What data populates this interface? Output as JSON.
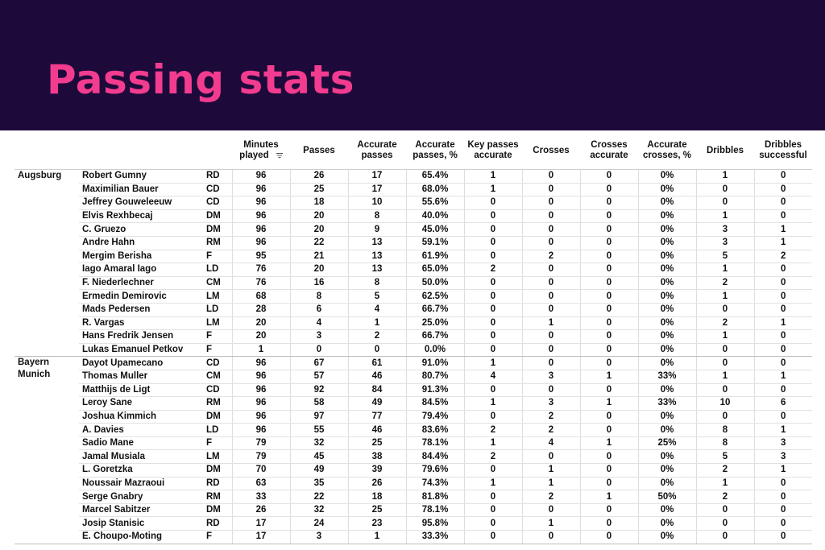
{
  "title": "Passing stats",
  "columns": [
    "Minutes played",
    "Passes",
    "Accurate passes",
    "Accurate passes, %",
    "Key passes accurate",
    "Crosses",
    "Crosses accurate",
    "Accurate crosses, %",
    "Dribbles",
    "Dribbles successful"
  ],
  "teams": [
    {
      "name": "Augsburg",
      "players": [
        {
          "name": "Robert Gumny",
          "pos": "RD",
          "stats": [
            "96",
            "26",
            "17",
            "65.4%",
            "1",
            "0",
            "0",
            "0%",
            "1",
            "0"
          ]
        },
        {
          "name": "Maximilian Bauer",
          "pos": "CD",
          "stats": [
            "96",
            "25",
            "17",
            "68.0%",
            "1",
            "0",
            "0",
            "0%",
            "0",
            "0"
          ]
        },
        {
          "name": "Jeffrey Gouweleeuw",
          "pos": "CD",
          "stats": [
            "96",
            "18",
            "10",
            "55.6%",
            "0",
            "0",
            "0",
            "0%",
            "0",
            "0"
          ]
        },
        {
          "name": "Elvis Rexhbecaj",
          "pos": "DM",
          "stats": [
            "96",
            "20",
            "8",
            "40.0%",
            "0",
            "0",
            "0",
            "0%",
            "1",
            "0"
          ]
        },
        {
          "name": "C. Gruezo",
          "pos": "DM",
          "stats": [
            "96",
            "20",
            "9",
            "45.0%",
            "0",
            "0",
            "0",
            "0%",
            "3",
            "1"
          ]
        },
        {
          "name": "Andre Hahn",
          "pos": "RM",
          "stats": [
            "96",
            "22",
            "13",
            "59.1%",
            "0",
            "0",
            "0",
            "0%",
            "3",
            "1"
          ]
        },
        {
          "name": "Mergim Berisha",
          "pos": "F",
          "stats": [
            "95",
            "21",
            "13",
            "61.9%",
            "0",
            "2",
            "0",
            "0%",
            "5",
            "2"
          ]
        },
        {
          "name": "Iago Amaral Iago",
          "pos": "LD",
          "stats": [
            "76",
            "20",
            "13",
            "65.0%",
            "2",
            "0",
            "0",
            "0%",
            "1",
            "0"
          ]
        },
        {
          "name": "F. Niederlechner",
          "pos": "CM",
          "stats": [
            "76",
            "16",
            "8",
            "50.0%",
            "0",
            "0",
            "0",
            "0%",
            "2",
            "0"
          ]
        },
        {
          "name": "Ermedin Demirovic",
          "pos": "LM",
          "stats": [
            "68",
            "8",
            "5",
            "62.5%",
            "0",
            "0",
            "0",
            "0%",
            "1",
            "0"
          ]
        },
        {
          "name": "Mads Pedersen",
          "pos": "LD",
          "stats": [
            "28",
            "6",
            "4",
            "66.7%",
            "0",
            "0",
            "0",
            "0%",
            "0",
            "0"
          ]
        },
        {
          "name": "R. Vargas",
          "pos": "LM",
          "stats": [
            "20",
            "4",
            "1",
            "25.0%",
            "0",
            "1",
            "0",
            "0%",
            "2",
            "1"
          ]
        },
        {
          "name": "Hans Fredrik Jensen",
          "pos": "F",
          "stats": [
            "20",
            "3",
            "2",
            "66.7%",
            "0",
            "0",
            "0",
            "0%",
            "1",
            "0"
          ]
        },
        {
          "name": "Lukas Emanuel Petkov",
          "pos": "F",
          "stats": [
            "1",
            "0",
            "0",
            "0.0%",
            "0",
            "0",
            "0",
            "0%",
            "0",
            "0"
          ]
        }
      ]
    },
    {
      "name": "Bayern Munich",
      "players": [
        {
          "name": "Dayot Upamecano",
          "pos": "CD",
          "stats": [
            "96",
            "67",
            "61",
            "91.0%",
            "1",
            "0",
            "0",
            "0%",
            "0",
            "0"
          ]
        },
        {
          "name": "Thomas Muller",
          "pos": "CM",
          "stats": [
            "96",
            "57",
            "46",
            "80.7%",
            "4",
            "3",
            "1",
            "33%",
            "1",
            "1"
          ]
        },
        {
          "name": "Matthijs de Ligt",
          "pos": "CD",
          "stats": [
            "96",
            "92",
            "84",
            "91.3%",
            "0",
            "0",
            "0",
            "0%",
            "0",
            "0"
          ]
        },
        {
          "name": "Leroy Sane",
          "pos": "RM",
          "stats": [
            "96",
            "58",
            "49",
            "84.5%",
            "1",
            "3",
            "1",
            "33%",
            "10",
            "6"
          ]
        },
        {
          "name": "Joshua Kimmich",
          "pos": "DM",
          "stats": [
            "96",
            "97",
            "77",
            "79.4%",
            "0",
            "2",
            "0",
            "0%",
            "0",
            "0"
          ]
        },
        {
          "name": "A. Davies",
          "pos": "LD",
          "stats": [
            "96",
            "55",
            "46",
            "83.6%",
            "2",
            "2",
            "0",
            "0%",
            "8",
            "1"
          ]
        },
        {
          "name": "Sadio Mane",
          "pos": "F",
          "stats": [
            "79",
            "32",
            "25",
            "78.1%",
            "1",
            "4",
            "1",
            "25%",
            "8",
            "3"
          ]
        },
        {
          "name": "Jamal Musiala",
          "pos": "LM",
          "stats": [
            "79",
            "45",
            "38",
            "84.4%",
            "2",
            "0",
            "0",
            "0%",
            "5",
            "3"
          ]
        },
        {
          "name": "L. Goretzka",
          "pos": "DM",
          "stats": [
            "70",
            "49",
            "39",
            "79.6%",
            "0",
            "1",
            "0",
            "0%",
            "2",
            "1"
          ]
        },
        {
          "name": "Noussair Mazraoui",
          "pos": "RD",
          "stats": [
            "63",
            "35",
            "26",
            "74.3%",
            "1",
            "1",
            "0",
            "0%",
            "1",
            "0"
          ]
        },
        {
          "name": "Serge Gnabry",
          "pos": "RM",
          "stats": [
            "33",
            "22",
            "18",
            "81.8%",
            "0",
            "2",
            "1",
            "50%",
            "2",
            "0"
          ]
        },
        {
          "name": "Marcel Sabitzer",
          "pos": "DM",
          "stats": [
            "26",
            "32",
            "25",
            "78.1%",
            "0",
            "0",
            "0",
            "0%",
            "0",
            "0"
          ]
        },
        {
          "name": "Josip Stanisic",
          "pos": "RD",
          "stats": [
            "17",
            "24",
            "23",
            "95.8%",
            "0",
            "1",
            "0",
            "0%",
            "0",
            "0"
          ]
        },
        {
          "name": "E. Choupo-Moting",
          "pos": "F",
          "stats": [
            "17",
            "3",
            "1",
            "33.3%",
            "0",
            "0",
            "0",
            "0%",
            "0",
            "0"
          ]
        }
      ]
    }
  ],
  "icons": {
    "sort": "sort-descending-icon"
  },
  "colors": {
    "banner_bg": "#1d0a3a",
    "title": "#f23c8f"
  }
}
